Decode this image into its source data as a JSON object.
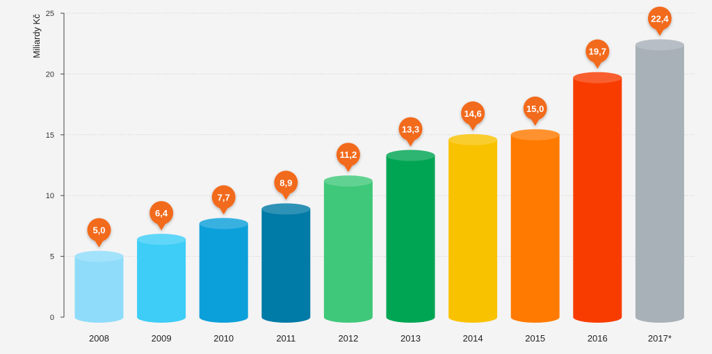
{
  "chart_data": {
    "type": "bar",
    "title": "",
    "xlabel": "",
    "ylabel": "Miliardy Kč",
    "ylim": [
      0,
      25
    ],
    "yticks": [
      0,
      5,
      10,
      15,
      20,
      25
    ],
    "grid": true,
    "categories": [
      "2008",
      "2009",
      "2010",
      "2011",
      "2012",
      "2013",
      "2014",
      "2015",
      "2016",
      "2017*"
    ],
    "values": [
      5.0,
      6.4,
      7.7,
      8.9,
      11.2,
      13.3,
      14.6,
      15.0,
      19.7,
      22.4
    ],
    "value_labels": [
      "5,0",
      "6,4",
      "7,7",
      "8,9",
      "11,2",
      "13,3",
      "14,6",
      "15,0",
      "19,7",
      "22,4"
    ],
    "colors": [
      "#8fdcfa",
      "#3dcdf6",
      "#0ca0da",
      "#007aa6",
      "#3fc87a",
      "#00a553",
      "#f9c200",
      "#ff7a00",
      "#f83c00",
      "#a8b0b8"
    ],
    "label_color": "#f26b1d"
  }
}
